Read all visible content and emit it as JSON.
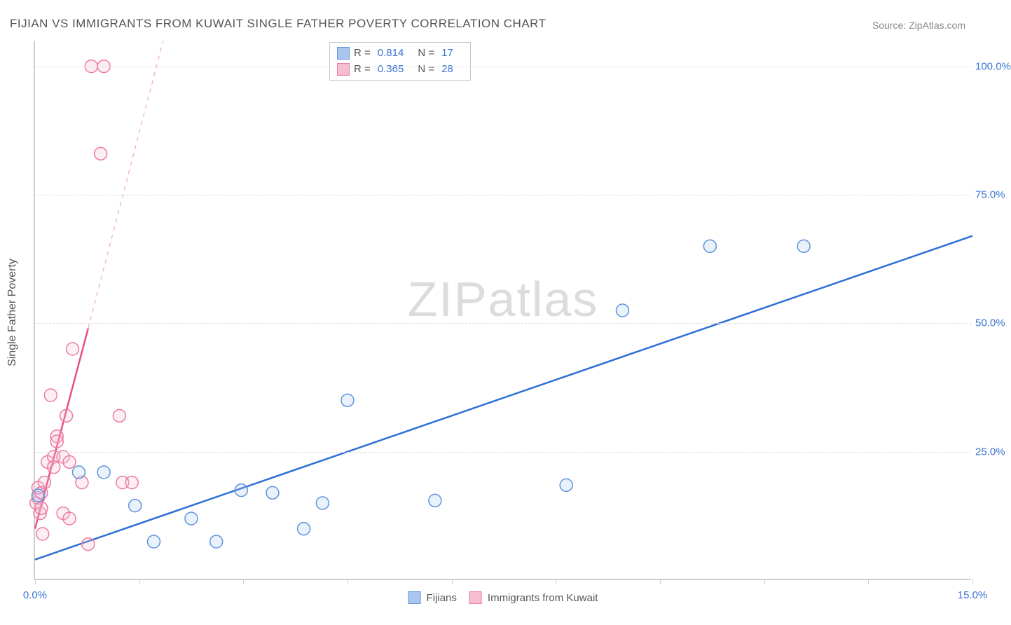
{
  "title": "FIJIAN VS IMMIGRANTS FROM KUWAIT SINGLE FATHER POVERTY CORRELATION CHART",
  "source": "Source: ZipAtlas.com",
  "watermark": "ZIPatlas",
  "chart": {
    "type": "scatter",
    "ylabel": "Single Father Poverty",
    "background_color": "#ffffff",
    "grid_color": "#dddddd",
    "axis_color": "#cfcfcf",
    "xlim": [
      0,
      15
    ],
    "ylim": [
      0,
      105
    ],
    "xticks": [
      0,
      1.67,
      3.33,
      5.0,
      6.67,
      8.33,
      10.0,
      11.67,
      13.33,
      15.0
    ],
    "xtick_labels": {
      "0": "0.0%",
      "15": "15.0%"
    },
    "yticks": [
      25,
      50,
      75,
      100
    ],
    "ytick_labels": [
      "25.0%",
      "50.0%",
      "75.0%",
      "100.0%"
    ],
    "label_color": "#3b74d4",
    "label_fontsize": 15,
    "marker_radius": 9,
    "series": [
      {
        "name": "Fijians",
        "color_stroke": "#5f93dd",
        "color_fill": "#a9c6ef",
        "R": "0.814",
        "N": "17",
        "points": [
          [
            0.05,
            16.5
          ],
          [
            0.7,
            21.0
          ],
          [
            1.1,
            21.0
          ],
          [
            1.6,
            14.5
          ],
          [
            1.9,
            7.5
          ],
          [
            2.5,
            12.0
          ],
          [
            2.9,
            7.5
          ],
          [
            3.3,
            17.5
          ],
          [
            3.8,
            17.0
          ],
          [
            4.3,
            10.0
          ],
          [
            4.6,
            15.0
          ],
          [
            5.0,
            35.0
          ],
          [
            6.4,
            15.5
          ],
          [
            8.5,
            18.5
          ],
          [
            9.4,
            52.5
          ],
          [
            10.8,
            65.0
          ],
          [
            12.3,
            65.0
          ]
        ],
        "trend": {
          "x1": 0.0,
          "y1": 4.0,
          "x2": 15.0,
          "y2": 67.0,
          "style": "solid",
          "width": 2.5
        }
      },
      {
        "name": "Immigrants from Kuwait",
        "color_stroke": "#ec7ba1",
        "color_fill": "#f6bccf",
        "R": "0.365",
        "N": "28",
        "points": [
          [
            0.02,
            15.0
          ],
          [
            0.05,
            16.0
          ],
          [
            0.05,
            18.0
          ],
          [
            0.08,
            13.0
          ],
          [
            0.1,
            17.0
          ],
          [
            0.1,
            14.0
          ],
          [
            0.12,
            9.0
          ],
          [
            0.15,
            19.0
          ],
          [
            0.2,
            23.0
          ],
          [
            0.25,
            36.0
          ],
          [
            0.3,
            24.0
          ],
          [
            0.3,
            22.0
          ],
          [
            0.35,
            28.0
          ],
          [
            0.35,
            27.0
          ],
          [
            0.45,
            24.0
          ],
          [
            0.45,
            13.0
          ],
          [
            0.5,
            32.0
          ],
          [
            0.55,
            23.0
          ],
          [
            0.55,
            12.0
          ],
          [
            0.6,
            45.0
          ],
          [
            0.75,
            19.0
          ],
          [
            0.85,
            7.0
          ],
          [
            0.9,
            100.0
          ],
          [
            1.05,
            83.0
          ],
          [
            1.1,
            100.0
          ],
          [
            1.35,
            32.0
          ],
          [
            1.4,
            19.0
          ],
          [
            1.55,
            19.0
          ]
        ],
        "trend_solid": {
          "x1": 0.0,
          "y1": 10.0,
          "x2": 0.85,
          "y2": 49.0,
          "width": 2.5
        },
        "trend_dashed": {
          "x1": 0.85,
          "y1": 49.0,
          "x2": 2.05,
          "y2": 105.0,
          "width": 1.2
        }
      }
    ]
  },
  "stats_legend": {
    "rows": [
      {
        "swatch_fill": "#a9c6ef",
        "swatch_stroke": "#5f93dd",
        "R": "0.814",
        "N": "17"
      },
      {
        "swatch_fill": "#f6bccf",
        "swatch_stroke": "#ec7ba1",
        "R": "0.365",
        "N": "28"
      }
    ],
    "R_label": "R  =",
    "N_label": "N  ="
  },
  "series_legend": [
    {
      "swatch_fill": "#a9c6ef",
      "swatch_stroke": "#5f93dd",
      "label": "Fijians"
    },
    {
      "swatch_fill": "#f6bccf",
      "swatch_stroke": "#ec7ba1",
      "label": "Immigrants from Kuwait"
    }
  ]
}
